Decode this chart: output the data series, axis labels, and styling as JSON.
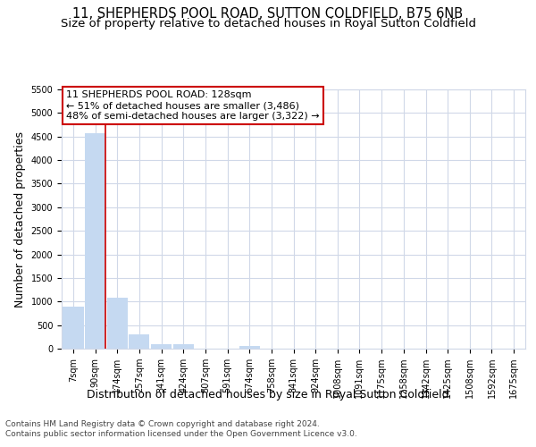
{
  "title": "11, SHEPHERDS POOL ROAD, SUTTON COLDFIELD, B75 6NB",
  "subtitle": "Size of property relative to detached houses in Royal Sutton Coldfield",
  "xlabel": "Distribution of detached houses by size in Royal Sutton Coldfield",
  "ylabel": "Number of detached properties",
  "annotation_line1": "11 SHEPHERDS POOL ROAD: 128sqm",
  "annotation_line2": "← 51% of detached houses are smaller (3,486)",
  "annotation_line3": "48% of semi-detached houses are larger (3,322) →",
  "footnote1": "Contains HM Land Registry data © Crown copyright and database right 2024.",
  "footnote2": "Contains public sector information licensed under the Open Government Licence v3.0.",
  "property_size": 128,
  "categories": [
    7,
    90,
    174,
    257,
    341,
    424,
    507,
    591,
    674,
    758,
    841,
    924,
    1008,
    1091,
    1175,
    1258,
    1342,
    1425,
    1508,
    1592,
    1675
  ],
  "tick_labels": [
    "7sqm",
    "90sqm",
    "174sqm",
    "257sqm",
    "341sqm",
    "424sqm",
    "507sqm",
    "591sqm",
    "674sqm",
    "758sqm",
    "841sqm",
    "924sqm",
    "1008sqm",
    "1091sqm",
    "1175sqm",
    "1258sqm",
    "1342sqm",
    "1425sqm",
    "1508sqm",
    "1592sqm",
    "1675sqm"
  ],
  "values": [
    900,
    4580,
    1075,
    300,
    100,
    100,
    0,
    0,
    50,
    0,
    0,
    0,
    0,
    0,
    0,
    0,
    0,
    0,
    0,
    0,
    0
  ],
  "bar_color": "#c5d9f1",
  "red_line_x": 128,
  "ylim": [
    0,
    5500
  ],
  "yticks": [
    0,
    500,
    1000,
    1500,
    2000,
    2500,
    3000,
    3500,
    4000,
    4500,
    5000,
    5500
  ],
  "annotation_box_color": "#cc0000",
  "grid_color": "#d0d8e8",
  "title_fontsize": 10.5,
  "subtitle_fontsize": 9.5,
  "xlabel_fontsize": 9,
  "ylabel_fontsize": 9,
  "tick_fontsize": 7,
  "annot_fontsize": 8,
  "footnote_fontsize": 6.5
}
